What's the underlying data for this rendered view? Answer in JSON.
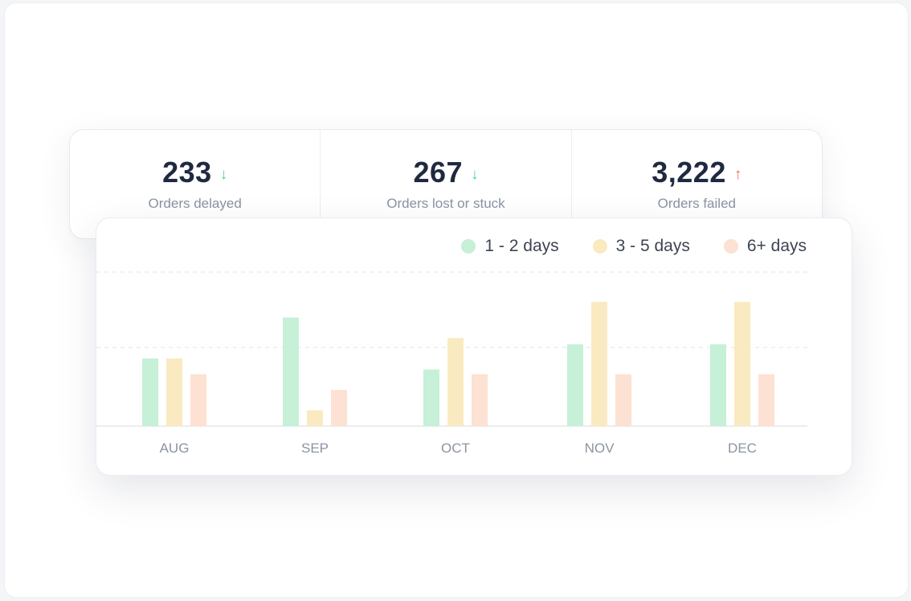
{
  "stats": [
    {
      "value": "233",
      "label": "Orders delayed",
      "trend": "down",
      "arrow": "↓",
      "color": "#4cd38e"
    },
    {
      "value": "267",
      "label": "Orders lost or stuck",
      "trend": "down",
      "arrow": "↓",
      "color": "#4cd38e"
    },
    {
      "value": "3,222",
      "label": "Orders failed",
      "trend": "up",
      "arrow": "↑",
      "color": "#ef6b5a"
    }
  ],
  "chart_data": {
    "type": "bar",
    "categories": [
      "AUG",
      "SEP",
      "OCT",
      "NOV",
      "DEC"
    ],
    "series": [
      {
        "name": "1 - 2 days",
        "color": "#c6f0d7",
        "values": [
          43,
          69,
          36,
          52,
          52
        ]
      },
      {
        "name": "3 - 5 days",
        "color": "#faeac1",
        "values": [
          43,
          10,
          56,
          79,
          79
        ]
      },
      {
        "name": "6+ days",
        "color": "#fde1d2",
        "values": [
          33,
          23,
          33,
          33,
          33
        ]
      }
    ],
    "ylim": [
      0,
      98
    ],
    "gridlines": [
      50,
      98
    ],
    "grid": true,
    "legend_position": "top-right"
  }
}
